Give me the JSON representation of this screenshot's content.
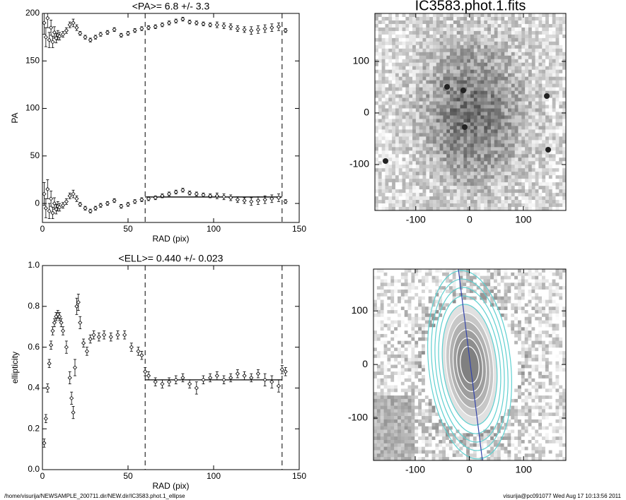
{
  "chart_data": [
    {
      "type": "scatter",
      "title": "<PA>=   6.8 +/-   3.3",
      "x_label": "RAD (pix)",
      "y_label": "PA",
      "xlim": [
        0,
        150
      ],
      "ylim": [
        -20,
        200
      ],
      "xticks": [
        0,
        50,
        100,
        150
      ],
      "yticks": [
        0,
        50,
        100,
        150,
        200
      ],
      "color": "#000000",
      "x": [
        1,
        2,
        3,
        4,
        5,
        6,
        7,
        8,
        9,
        10,
        12,
        14,
        16,
        18,
        20,
        22,
        25,
        28,
        31,
        34,
        38,
        42,
        46,
        50,
        54,
        58,
        62,
        66,
        70,
        74,
        78,
        82,
        86,
        90,
        94,
        98,
        102,
        106,
        110,
        114,
        118,
        122,
        126,
        130,
        134,
        138,
        142
      ],
      "series": [
        {
          "values": [
            190,
            175,
            195,
            172,
            185,
            170,
            180,
            174,
            177,
            176,
            178,
            182,
            188,
            190,
            185,
            179,
            175,
            172,
            175,
            178,
            180,
            183,
            177,
            179,
            182,
            184,
            185,
            186,
            188,
            190,
            192,
            194,
            191,
            190,
            189,
            188,
            188,
            187,
            186,
            184,
            183,
            182,
            183,
            184,
            185,
            186,
            182
          ],
          "errors": [
            12,
            10,
            10,
            8,
            8,
            6,
            6,
            5,
            5,
            4,
            3,
            3,
            3,
            4,
            3,
            2,
            2,
            2,
            2,
            2,
            2,
            2,
            2,
            2,
            2,
            2,
            2,
            2,
            2,
            2,
            2,
            2,
            2,
            2,
            2,
            2,
            3,
            3,
            3,
            3,
            3,
            4,
            4,
            4,
            4,
            4,
            2
          ]
        },
        {
          "values": [
            10,
            -5,
            15,
            -8,
            5,
            -10,
            0,
            -6,
            -3,
            -4,
            -2,
            2,
            8,
            10,
            5,
            -1,
            -5,
            -8,
            -5,
            -2,
            0,
            3,
            -3,
            -1,
            2,
            4,
            5,
            6,
            8,
            10,
            12,
            14,
            11,
            10,
            9,
            8,
            8,
            7,
            6,
            4,
            3,
            2,
            3,
            4,
            5,
            6,
            2
          ],
          "errors": [
            12,
            10,
            10,
            8,
            8,
            6,
            6,
            5,
            5,
            4,
            3,
            3,
            3,
            4,
            3,
            2,
            2,
            2,
            2,
            2,
            2,
            2,
            2,
            2,
            2,
            2,
            2,
            2,
            2,
            2,
            2,
            2,
            2,
            2,
            2,
            2,
            3,
            3,
            3,
            3,
            3,
            4,
            4,
            4,
            4,
            4,
            2
          ]
        }
      ],
      "fit": {
        "value": 6.8,
        "xrange": [
          60,
          140
        ]
      },
      "vlines": [
        60,
        140
      ]
    },
    {
      "type": "image",
      "title": "IC3583.phot.1.fits",
      "xlim": [
        -176,
        179
      ],
      "ylim": [
        -189,
        193
      ],
      "xticks": [
        -100,
        0,
        100
      ],
      "yticks": [
        -100,
        0,
        100
      ]
    },
    {
      "type": "scatter",
      "title": "<ELL>= 0.440 +/-  0.023",
      "x_label": "RAD (pix)",
      "y_label": "ellipticity",
      "xlim": [
        0,
        150
      ],
      "ylim": [
        0,
        1
      ],
      "xticks": [
        0,
        50,
        100,
        150
      ],
      "yticks": [
        {
          "value": 0,
          "label": "0.0"
        },
        0.2,
        0.4,
        0.6,
        0.8,
        {
          "value": 1,
          "label": "1.0"
        }
      ],
      "color": "#000000",
      "x": [
        1,
        2,
        3,
        4,
        5,
        6,
        7,
        8,
        9,
        10,
        11,
        12,
        14,
        16,
        17,
        18,
        19,
        20,
        21,
        22,
        24,
        26,
        28,
        30,
        33,
        36,
        40,
        44,
        48,
        52,
        56,
        58,
        60,
        62,
        66,
        70,
        74,
        78,
        82,
        86,
        90,
        94,
        98,
        102,
        106,
        110,
        114,
        118,
        122,
        126,
        130,
        134,
        138,
        140,
        142
      ],
      "series": [
        {
          "values": [
            0.13,
            0.25,
            0.4,
            0.52,
            0.61,
            0.68,
            0.72,
            0.75,
            0.76,
            0.75,
            0.72,
            0.68,
            0.6,
            0.45,
            0.35,
            0.28,
            0.5,
            0.8,
            0.82,
            0.72,
            0.62,
            0.58,
            0.64,
            0.66,
            0.65,
            0.66,
            0.65,
            0.66,
            0.66,
            0.6,
            0.58,
            0.56,
            0.48,
            0.46,
            0.43,
            0.42,
            0.43,
            0.44,
            0.45,
            0.42,
            0.4,
            0.44,
            0.45,
            0.46,
            0.44,
            0.45,
            0.47,
            0.46,
            0.45,
            0.47,
            0.44,
            0.43,
            0.41,
            0.49,
            0.48
          ],
          "errors": [
            0.02,
            0.02,
            0.02,
            0.02,
            0.02,
            0.02,
            0.02,
            0.02,
            0.02,
            0.02,
            0.02,
            0.02,
            0.03,
            0.03,
            0.03,
            0.03,
            0.04,
            0.04,
            0.04,
            0.03,
            0.02,
            0.02,
            0.02,
            0.02,
            0.02,
            0.02,
            0.02,
            0.02,
            0.02,
            0.02,
            0.02,
            0.02,
            0.02,
            0.02,
            0.02,
            0.02,
            0.02,
            0.02,
            0.02,
            0.02,
            0.03,
            0.02,
            0.02,
            0.02,
            0.02,
            0.02,
            0.02,
            0.02,
            0.02,
            0.02,
            0.03,
            0.03,
            0.03,
            0.02,
            0.02
          ]
        }
      ],
      "fit": {
        "value": 0.44,
        "xrange": [
          60,
          140
        ]
      },
      "vlines": [
        60,
        140
      ]
    },
    {
      "type": "image",
      "contours": true,
      "xlim": [
        -177,
        178
      ],
      "ylim": [
        -179,
        178
      ],
      "xticks": [
        -100,
        0,
        100
      ],
      "yticks": [
        -100,
        0,
        100
      ]
    }
  ],
  "footer": {
    "left": "/home/visurija/NEWSAMPLE_200711.dir/NEW.dir/IC3583.phot.1_ellipse",
    "right": "visurija@pc091077  Wed Aug 17 10:13:56 2011"
  }
}
